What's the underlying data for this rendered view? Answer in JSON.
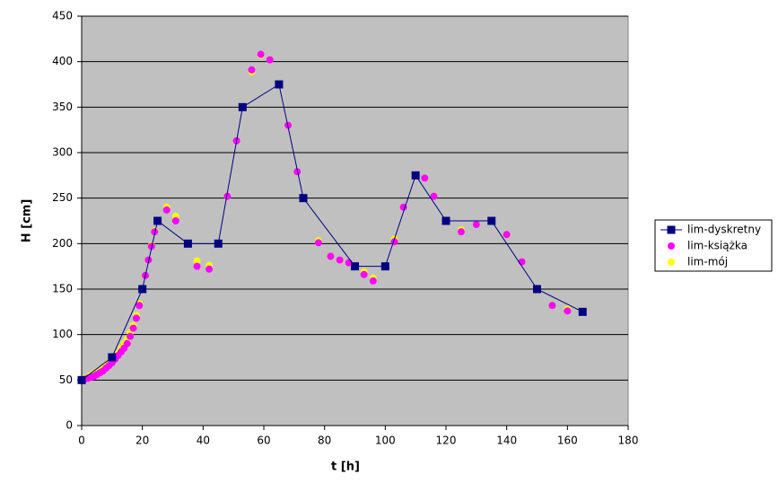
{
  "chart_data": {
    "type": "line",
    "xlabel": "t [h]",
    "ylabel": "H [cm]",
    "xlim": [
      0,
      180
    ],
    "xticks": [
      0,
      20,
      40,
      60,
      80,
      100,
      120,
      140,
      160,
      180
    ],
    "ylim": [
      0,
      450
    ],
    "yticks": [
      0,
      50,
      100,
      150,
      200,
      250,
      300,
      350,
      400,
      450
    ],
    "grid": true,
    "legend": "right",
    "background": "#c0c0c0",
    "series": [
      {
        "name": "lim-dyskretny",
        "color": "#000080",
        "line": true,
        "marker": "square",
        "x": [
          0,
          10,
          20,
          25,
          35,
          45,
          53,
          65,
          73,
          90,
          100,
          110,
          120,
          135,
          150,
          165
        ],
        "values": [
          50,
          75,
          150,
          225,
          200,
          200,
          350,
          375,
          250,
          175,
          175,
          275,
          225,
          225,
          150,
          125
        ]
      },
      {
        "name": "lim-książka",
        "color": "#ff00ff",
        "line": false,
        "marker": "circle",
        "x": [
          0,
          1,
          2,
          3,
          4,
          5,
          6,
          7,
          8,
          9,
          10,
          11,
          12,
          13,
          14,
          15,
          16,
          17,
          18,
          19,
          21,
          22,
          23,
          24,
          28,
          31,
          38,
          42,
          48,
          51,
          56,
          59,
          62,
          68,
          71,
          78,
          82,
          85,
          88,
          93,
          96,
          103,
          106,
          113,
          116,
          125,
          130,
          140,
          145,
          155,
          160
        ],
        "values": [
          50,
          51,
          52,
          53,
          54,
          56,
          58,
          60,
          63,
          66,
          69,
          73,
          77,
          81,
          85,
          90,
          98,
          107,
          118,
          132,
          165,
          182,
          197,
          213,
          237,
          225,
          175,
          172,
          252,
          313,
          391,
          408,
          402,
          330,
          279,
          201,
          186,
          182,
          179,
          166,
          159,
          202,
          240,
          272,
          252,
          213,
          221,
          210,
          180,
          132,
          126
        ]
      },
      {
        "name": "lim-mój",
        "color": "#ffff00",
        "line": false,
        "marker": "circle",
        "x": [
          0,
          1,
          2,
          3,
          4,
          5,
          6,
          7,
          8,
          9,
          10,
          11,
          12,
          13,
          14,
          15,
          16,
          17,
          18,
          19,
          21,
          22,
          23,
          24,
          28,
          31,
          38,
          42,
          48,
          51,
          56,
          59,
          62,
          68,
          71,
          78,
          82,
          85,
          88,
          93,
          96,
          103,
          106,
          113,
          116,
          125,
          130,
          140,
          145,
          155,
          160
        ],
        "values": [
          50,
          52,
          53,
          55,
          57,
          59,
          61,
          63,
          66,
          69,
          72,
          76,
          80,
          85,
          90,
          95,
          102,
          110,
          121,
          134,
          165,
          182,
          198,
          214,
          240,
          230,
          181,
          176,
          252,
          313,
          389,
          407,
          402,
          330,
          279,
          203,
          186,
          182,
          179,
          169,
          162,
          205,
          240,
          272,
          252,
          215,
          221,
          210,
          180,
          132,
          128
        ]
      }
    ]
  }
}
